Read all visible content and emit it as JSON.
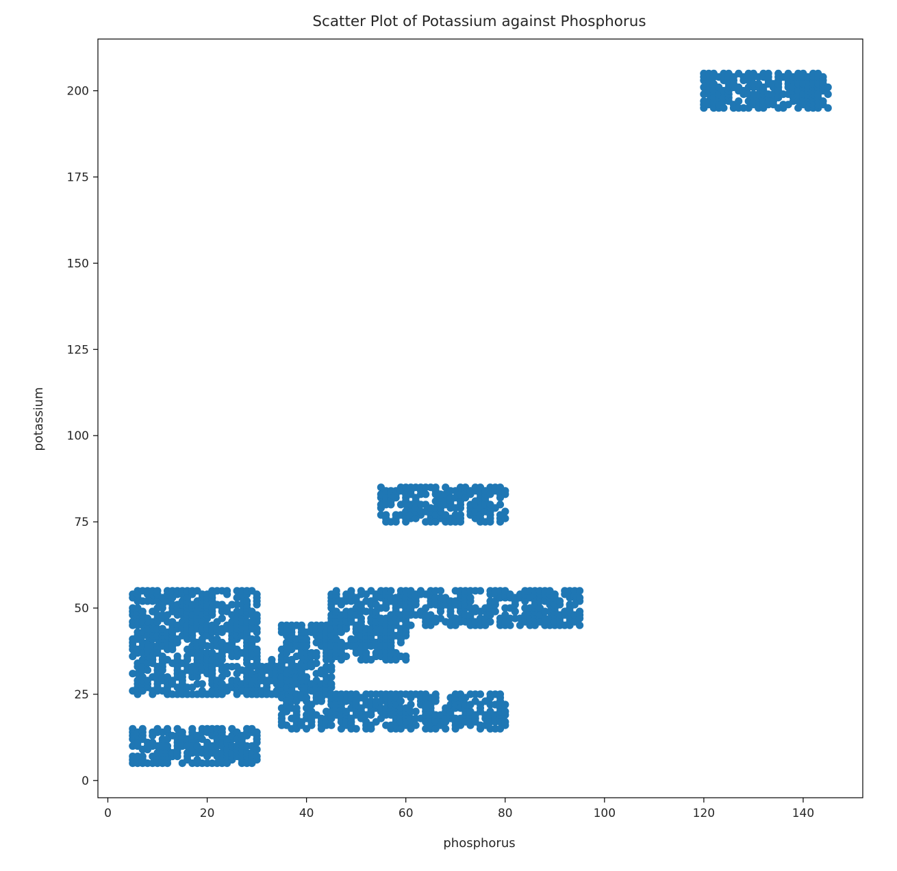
{
  "chart_data": {
    "type": "scatter",
    "title": "Scatter Plot of Potassium against Phosphorus",
    "xlabel": "phosphorus",
    "ylabel": "potassium",
    "xlim": [
      -2,
      152
    ],
    "ylim": [
      -5,
      215
    ],
    "xticks": [
      0,
      20,
      40,
      60,
      80,
      100,
      120,
      140
    ],
    "yticks": [
      0,
      25,
      50,
      75,
      100,
      125,
      150,
      175,
      200
    ],
    "grid": false,
    "legend": "none",
    "marker_color": "#1f77b4",
    "series": [
      {
        "clusters": [
          {
            "x_range": [
              5,
              30
            ],
            "y_range": [
              25,
              55
            ],
            "step": 1
          },
          {
            "x_range": [
              5,
              30
            ],
            "y_range": [
              5,
              15
            ],
            "step": 1
          },
          {
            "x_range": [
              30,
              37
            ],
            "y_range": [
              25,
              35
            ],
            "step": 1
          },
          {
            "x_range": [
              35,
              45
            ],
            "y_range": [
              15,
              45
            ],
            "step": 1
          },
          {
            "x_range": [
              45,
              60
            ],
            "y_range": [
              35,
              55
            ],
            "step": 1
          },
          {
            "x_range": [
              45,
              80
            ],
            "y_range": [
              15,
              25
            ],
            "step": 1
          },
          {
            "x_range": [
              55,
              80
            ],
            "y_range": [
              75,
              85
            ],
            "step": 1
          },
          {
            "x_range": [
              60,
              95
            ],
            "y_range": [
              45,
              55
            ],
            "step": 1
          },
          {
            "x_range": [
              120,
              145
            ],
            "y_range": [
              195,
              205
            ],
            "step": 1
          }
        ]
      }
    ]
  }
}
